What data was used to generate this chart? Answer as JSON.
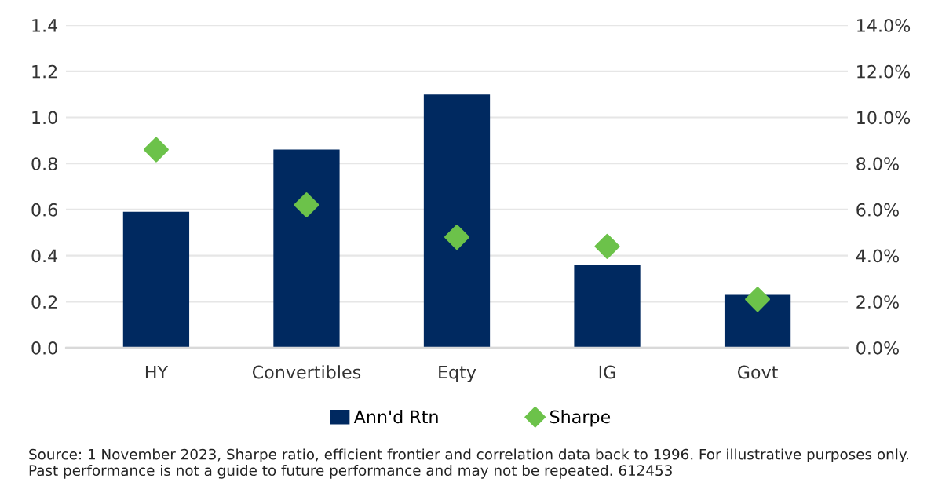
{
  "chart_data": {
    "type": "bar",
    "categories": [
      "HY",
      "Convertibles",
      "Eqty",
      "IG",
      "Govt"
    ],
    "series": [
      {
        "name": "Ann'd Rtn",
        "axis": "y2",
        "color": "#002960",
        "values": [
          5.9,
          8.6,
          11.0,
          3.6,
          2.3
        ]
      },
      {
        "name": "Sharpe",
        "type": "scatter",
        "axis": "y",
        "color": "#6cc24a",
        "marker": "diamond",
        "values": [
          0.86,
          0.62,
          0.48,
          0.44,
          0.21
        ]
      }
    ],
    "ylim": [
      0,
      1.4
    ],
    "yticks": [
      {
        "value": 0,
        "label": "0.0"
      },
      0.2,
      0.4,
      0.6,
      0.8,
      {
        "value": 1,
        "label": "1.0"
      },
      1.2,
      1.4
    ],
    "y2lim": [
      0,
      14
    ],
    "y2ticks": [
      {
        "value": 0,
        "label": "0.0%"
      },
      {
        "value": 2,
        "label": "2.0%"
      },
      {
        "value": 4,
        "label": "4.0%"
      },
      {
        "value": 6,
        "label": "6.0%"
      },
      {
        "value": 8,
        "label": "8.0%"
      },
      {
        "value": 10,
        "label": "10.0%"
      },
      {
        "value": 12,
        "label": "12.0%"
      },
      {
        "value": 14,
        "label": "14.0%"
      }
    ],
    "grid": "y",
    "legend": "bottom",
    "annotations": [
      "Source: 1 November 2023, Sharpe ratio, efficient frontier and correlation data back to 1996. For illustrative purposes only.\nPast performance is not a guide to future performance and may not be repeated. 612453"
    ]
  }
}
